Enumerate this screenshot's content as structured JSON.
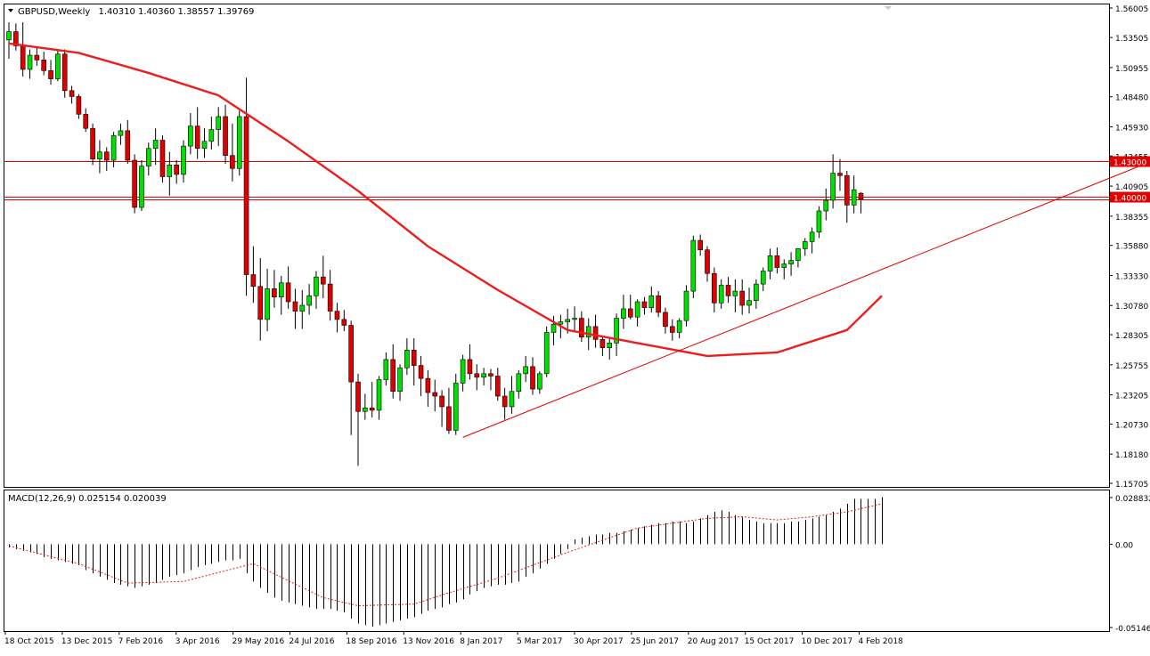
{
  "header": {
    "symbol_label": "GBPUSD,Weekly",
    "ohlc": "1.40310 1.40360 1.38557 1.39769"
  },
  "colors": {
    "bull": "#00e000",
    "bear": "#e00000",
    "wick": "#000000",
    "ma": "#ee1c1c",
    "level": "#e00000",
    "trendline": "#e00000",
    "grid": "#000000"
  },
  "price_axis": {
    "ticks": [
      "1.56005",
      "1.53505",
      "1.50955",
      "1.48480",
      "1.45930",
      "1.43455",
      "1.40905",
      "1.38355",
      "1.35880",
      "1.33330",
      "1.30780",
      "1.28305",
      "1.25755",
      "1.23205",
      "1.20730",
      "1.18180",
      "1.15705"
    ],
    "ylim": [
      1.15705,
      1.56005
    ]
  },
  "levels": [
    {
      "value": 1.43,
      "label": "1.43000"
    },
    {
      "value": 1.4,
      "label": "1.40000"
    }
  ],
  "macd": {
    "label": "MACD(12,26,9) 0.025154 0.020039",
    "ticks": [
      "0.028832",
      "0.00",
      "-0.051467"
    ],
    "ylim": [
      -0.051467,
      0.028832
    ]
  },
  "time_axis": {
    "labels": [
      "18 Oct 2015",
      "13 Dec 2015",
      "7 Feb 2016",
      "3 Apr 2016",
      "29 May 2016",
      "24 Jul 2016",
      "18 Sep 2016",
      "13 Nov 2016",
      "8 Jan 2017",
      "5 Mar 2017",
      "30 Apr 2017",
      "25 Jun 2017",
      "20 Aug 2017",
      "15 Oct 2017",
      "10 Dec 2017",
      "4 Feb 2018"
    ]
  },
  "chart_data": {
    "type": "candlestick",
    "title": "GBPUSD,Weekly",
    "candles_ohlc": [
      [
        1.533,
        1.548,
        1.517,
        1.54
      ],
      [
        1.54,
        1.547,
        1.524,
        1.528
      ],
      [
        1.528,
        1.548,
        1.502,
        1.508
      ],
      [
        1.508,
        1.525,
        1.5,
        1.52
      ],
      [
        1.52,
        1.527,
        1.511,
        1.516
      ],
      [
        1.516,
        1.523,
        1.503,
        1.507
      ],
      [
        1.507,
        1.516,
        1.495,
        1.5
      ],
      [
        1.5,
        1.525,
        1.498,
        1.521
      ],
      [
        1.521,
        1.525,
        1.484,
        1.49
      ],
      [
        1.49,
        1.494,
        1.479,
        1.485
      ],
      [
        1.485,
        1.487,
        1.466,
        1.47
      ],
      [
        1.47,
        1.475,
        1.455,
        1.458
      ],
      [
        1.458,
        1.462,
        1.427,
        1.432
      ],
      [
        1.432,
        1.448,
        1.42,
        1.438
      ],
      [
        1.438,
        1.442,
        1.422,
        1.431
      ],
      [
        1.431,
        1.455,
        1.425,
        1.452
      ],
      [
        1.452,
        1.462,
        1.444,
        1.456
      ],
      [
        1.456,
        1.465,
        1.428,
        1.431
      ],
      [
        1.431,
        1.436,
        1.386,
        1.391
      ],
      [
        1.391,
        1.431,
        1.388,
        1.426
      ],
      [
        1.426,
        1.446,
        1.418,
        1.441
      ],
      [
        1.441,
        1.458,
        1.427,
        1.448
      ],
      [
        1.448,
        1.452,
        1.412,
        1.417
      ],
      [
        1.417,
        1.438,
        1.401,
        1.427
      ],
      [
        1.427,
        1.431,
        1.411,
        1.419
      ],
      [
        1.419,
        1.448,
        1.412,
        1.443
      ],
      [
        1.443,
        1.471,
        1.436,
        1.46
      ],
      [
        1.46,
        1.476,
        1.432,
        1.441
      ],
      [
        1.441,
        1.458,
        1.433,
        1.447
      ],
      [
        1.447,
        1.468,
        1.44,
        1.457
      ],
      [
        1.457,
        1.476,
        1.443,
        1.468
      ],
      [
        1.468,
        1.478,
        1.428,
        1.435
      ],
      [
        1.435,
        1.462,
        1.413,
        1.424
      ],
      [
        1.424,
        1.473,
        1.418,
        1.468
      ],
      [
        1.468,
        1.501,
        1.316,
        1.334
      ],
      [
        1.334,
        1.358,
        1.31,
        1.324
      ],
      [
        1.324,
        1.348,
        1.278,
        1.296
      ],
      [
        1.296,
        1.339,
        1.286,
        1.322
      ],
      [
        1.322,
        1.338,
        1.306,
        1.315
      ],
      [
        1.315,
        1.333,
        1.3,
        1.327
      ],
      [
        1.327,
        1.341,
        1.305,
        1.311
      ],
      [
        1.311,
        1.322,
        1.288,
        1.303
      ],
      [
        1.303,
        1.321,
        1.288,
        1.308
      ],
      [
        1.308,
        1.326,
        1.3,
        1.316
      ],
      [
        1.316,
        1.337,
        1.305,
        1.332
      ],
      [
        1.332,
        1.35,
        1.314,
        1.326
      ],
      [
        1.326,
        1.338,
        1.295,
        1.303
      ],
      [
        1.303,
        1.31,
        1.285,
        1.296
      ],
      [
        1.296,
        1.304,
        1.286,
        1.291
      ],
      [
        1.291,
        1.295,
        1.198,
        1.243
      ],
      [
        1.243,
        1.25,
        1.172,
        1.218
      ],
      [
        1.218,
        1.233,
        1.211,
        1.221
      ],
      [
        1.221,
        1.243,
        1.213,
        1.219
      ],
      [
        1.219,
        1.248,
        1.211,
        1.245
      ],
      [
        1.245,
        1.268,
        1.24,
        1.262
      ],
      [
        1.262,
        1.275,
        1.229,
        1.235
      ],
      [
        1.235,
        1.258,
        1.227,
        1.255
      ],
      [
        1.255,
        1.28,
        1.249,
        1.27
      ],
      [
        1.27,
        1.28,
        1.24,
        1.257
      ],
      [
        1.257,
        1.265,
        1.231,
        1.246
      ],
      [
        1.246,
        1.253,
        1.222,
        1.234
      ],
      [
        1.234,
        1.245,
        1.218,
        1.231
      ],
      [
        1.231,
        1.236,
        1.205,
        1.222
      ],
      [
        1.222,
        1.238,
        1.199,
        1.202
      ],
      [
        1.202,
        1.25,
        1.198,
        1.242
      ],
      [
        1.242,
        1.266,
        1.235,
        1.262
      ],
      [
        1.262,
        1.275,
        1.245,
        1.25
      ],
      [
        1.25,
        1.258,
        1.236,
        1.247
      ],
      [
        1.247,
        1.255,
        1.24,
        1.25
      ],
      [
        1.25,
        1.254,
        1.236,
        1.248
      ],
      [
        1.248,
        1.255,
        1.227,
        1.231
      ],
      [
        1.231,
        1.238,
        1.211,
        1.222
      ],
      [
        1.222,
        1.248,
        1.216,
        1.235
      ],
      [
        1.235,
        1.253,
        1.229,
        1.25
      ],
      [
        1.25,
        1.265,
        1.243,
        1.256
      ],
      [
        1.256,
        1.264,
        1.232,
        1.237
      ],
      [
        1.237,
        1.252,
        1.233,
        1.25
      ],
      [
        1.25,
        1.29,
        1.247,
        1.285
      ],
      [
        1.285,
        1.299,
        1.274,
        1.292
      ],
      [
        1.292,
        1.3,
        1.28,
        1.294
      ],
      [
        1.294,
        1.305,
        1.284,
        1.296
      ],
      [
        1.296,
        1.307,
        1.285,
        1.297
      ],
      [
        1.297,
        1.303,
        1.277,
        1.281
      ],
      [
        1.281,
        1.297,
        1.27,
        1.29
      ],
      [
        1.29,
        1.3,
        1.272,
        1.279
      ],
      [
        1.279,
        1.282,
        1.265,
        1.272
      ],
      [
        1.272,
        1.28,
        1.262,
        1.276
      ],
      [
        1.276,
        1.301,
        1.265,
        1.297
      ],
      [
        1.297,
        1.317,
        1.288,
        1.305
      ],
      [
        1.305,
        1.317,
        1.296,
        1.298
      ],
      [
        1.298,
        1.313,
        1.29,
        1.311
      ],
      [
        1.311,
        1.315,
        1.3,
        1.306
      ],
      [
        1.306,
        1.324,
        1.302,
        1.316
      ],
      [
        1.316,
        1.32,
        1.298,
        1.302
      ],
      [
        1.302,
        1.306,
        1.284,
        1.29
      ],
      [
        1.29,
        1.296,
        1.278,
        1.285
      ],
      [
        1.285,
        1.297,
        1.28,
        1.295
      ],
      [
        1.295,
        1.325,
        1.29,
        1.32
      ],
      [
        1.32,
        1.367,
        1.314,
        1.363
      ],
      [
        1.363,
        1.368,
        1.35,
        1.355
      ],
      [
        1.355,
        1.358,
        1.328,
        1.335
      ],
      [
        1.335,
        1.34,
        1.302,
        1.31
      ],
      [
        1.31,
        1.33,
        1.305,
        1.325
      ],
      [
        1.325,
        1.332,
        1.31,
        1.316
      ],
      [
        1.316,
        1.33,
        1.302,
        1.32
      ],
      [
        1.32,
        1.33,
        1.3,
        1.308
      ],
      [
        1.308,
        1.323,
        1.301,
        1.312
      ],
      [
        1.312,
        1.33,
        1.305,
        1.326
      ],
      [
        1.326,
        1.34,
        1.32,
        1.337
      ],
      [
        1.337,
        1.356,
        1.33,
        1.35
      ],
      [
        1.35,
        1.357,
        1.335,
        1.34
      ],
      [
        1.34,
        1.347,
        1.33,
        1.343
      ],
      [
        1.343,
        1.353,
        1.333,
        1.346
      ],
      [
        1.346,
        1.355,
        1.34,
        1.356
      ],
      [
        1.356,
        1.365,
        1.35,
        1.362
      ],
      [
        1.362,
        1.374,
        1.352,
        1.37
      ],
      [
        1.37,
        1.392,
        1.365,
        1.388
      ],
      [
        1.388,
        1.407,
        1.38,
        1.397
      ],
      [
        1.397,
        1.436,
        1.39,
        1.42
      ],
      [
        1.42,
        1.432,
        1.405,
        1.418
      ],
      [
        1.418,
        1.422,
        1.378,
        1.393
      ],
      [
        1.393,
        1.418,
        1.386,
        1.406
      ],
      [
        1.403,
        1.404,
        1.386,
        1.398
      ]
    ],
    "moving_average": {
      "x_index": [
        0,
        10,
        20,
        30,
        40,
        50,
        60,
        70,
        80,
        90,
        100,
        110,
        120,
        125
      ],
      "values": [
        1.53,
        1.522,
        1.505,
        1.486,
        1.447,
        1.405,
        1.358,
        1.321,
        1.287,
        1.276,
        1.265,
        1.268,
        1.287,
        1.316
      ]
    },
    "levels": [
      1.43,
      1.4
    ],
    "trendline": {
      "start": {
        "x_index": 65,
        "y": 1.196
      },
      "end": {
        "x_index": 164,
        "y": 1.431
      }
    },
    "macd_line": {
      "x_index": [
        0,
        10,
        17,
        25,
        35,
        45,
        50,
        58,
        63,
        70,
        80,
        90,
        100,
        105,
        110,
        115,
        120,
        125
      ],
      "values": [
        -0.001,
        -0.012,
        -0.024,
        -0.023,
        -0.012,
        -0.033,
        -0.038,
        -0.037,
        -0.03,
        -0.021,
        -0.005,
        0.01,
        0.016,
        0.017,
        0.015,
        0.017,
        0.02,
        0.025
      ]
    },
    "macd_hist": [
      -0.002,
      -0.003,
      -0.004,
      -0.005,
      -0.006,
      -0.008,
      -0.009,
      -0.01,
      -0.011,
      -0.012,
      -0.013,
      -0.016,
      -0.018,
      -0.02,
      -0.022,
      -0.024,
      -0.025,
      -0.026,
      -0.027,
      -0.026,
      -0.025,
      -0.024,
      -0.022,
      -0.02,
      -0.019,
      -0.018,
      -0.016,
      -0.014,
      -0.013,
      -0.012,
      -0.011,
      -0.01,
      -0.01,
      -0.009,
      -0.018,
      -0.023,
      -0.027,
      -0.03,
      -0.033,
      -0.035,
      -0.036,
      -0.037,
      -0.038,
      -0.039,
      -0.04,
      -0.04,
      -0.04,
      -0.041,
      -0.042,
      -0.046,
      -0.049,
      -0.05,
      -0.051,
      -0.05,
      -0.049,
      -0.048,
      -0.047,
      -0.046,
      -0.045,
      -0.043,
      -0.041,
      -0.04,
      -0.039,
      -0.037,
      -0.036,
      -0.034,
      -0.031,
      -0.029,
      -0.027,
      -0.026,
      -0.025,
      -0.025,
      -0.024,
      -0.023,
      -0.02,
      -0.018,
      -0.015,
      -0.012,
      -0.009,
      -0.006,
      -0.003,
      0.003,
      0.004,
      0.005,
      0.006,
      0.006,
      0.007,
      0.007,
      0.008,
      0.009,
      0.01,
      0.011,
      0.012,
      0.013,
      0.013,
      0.014,
      0.014,
      0.013,
      0.014,
      0.016,
      0.018,
      0.02,
      0.021,
      0.02,
      0.018,
      0.017,
      0.015,
      0.014,
      0.013,
      0.013,
      0.013,
      0.013,
      0.014,
      0.014,
      0.015,
      0.016,
      0.017,
      0.018,
      0.02,
      0.022,
      0.025,
      0.028,
      0.028,
      0.028,
      0.028,
      0.029
    ],
    "y_range": [
      1.15705,
      1.56005
    ]
  }
}
